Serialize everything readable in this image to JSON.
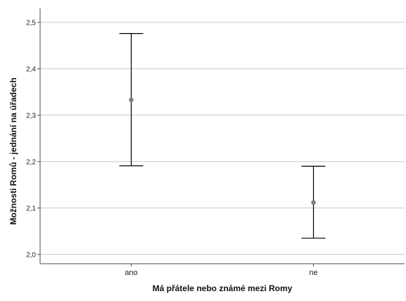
{
  "chart_data": {
    "type": "errorbar",
    "xlabel": "Má přátele nebo známé mezi Romy",
    "ylabel": "Možnosti Romů - jednání na úřadech",
    "categories": [
      "ano",
      "ne"
    ],
    "series": [
      {
        "mean": [
          2.333,
          2.112
        ],
        "lower": [
          2.191,
          2.035
        ],
        "upper": [
          2.476,
          2.19
        ]
      }
    ],
    "ylim": [
      1.98,
      2.53
    ],
    "yticks": [
      2.0,
      2.1,
      2.2,
      2.3,
      2.4,
      2.5
    ],
    "ytick_labels": [
      "2,0",
      "2,1",
      "2,2",
      "2,3",
      "2,4",
      "2,5"
    ],
    "grid": true,
    "colors": {
      "line": "#000000",
      "point": "#808080",
      "grid": "#c8c8c8",
      "axis": "#4d4d4d"
    }
  }
}
